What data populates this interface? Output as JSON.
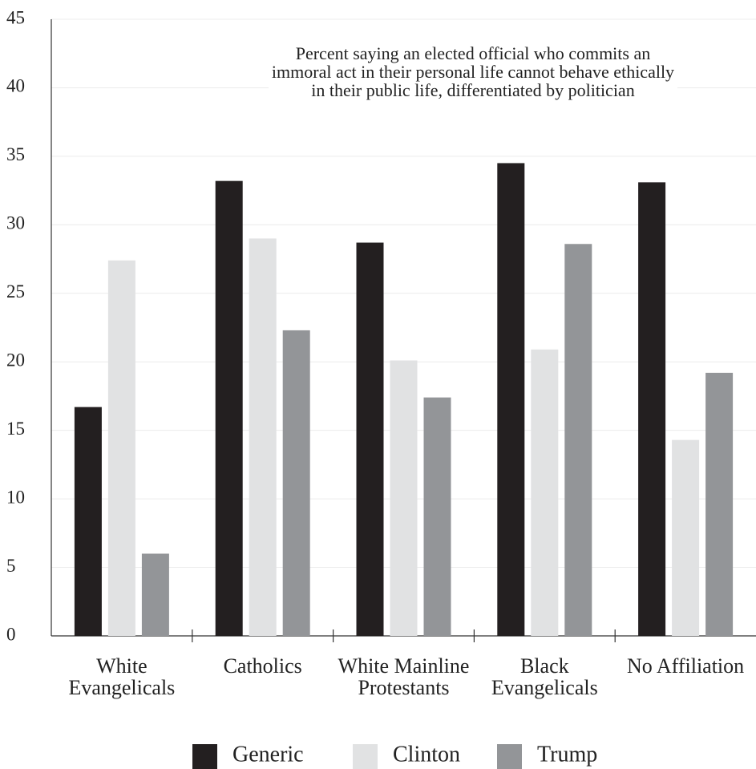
{
  "chart_data": {
    "type": "bar",
    "title": "Percent saying an elected official who commits an immoral act in their personal life cannot behave ethically in their public life, differentiated by politician",
    "categories": [
      "White Evangelicals",
      "Catholics",
      "White Mainline Protestants",
      "Black Evangelicals",
      "No Affiliation"
    ],
    "series": [
      {
        "name": "Generic",
        "color": "#231f20",
        "values": [
          16.7,
          33.2,
          28.7,
          34.5,
          33.1
        ]
      },
      {
        "name": "Clinton",
        "color": "#e1e2e3",
        "values": [
          27.4,
          29.0,
          20.1,
          20.9,
          14.3
        ]
      },
      {
        "name": "Trump",
        "color": "#939598",
        "values": [
          6.0,
          22.3,
          17.4,
          28.6,
          19.2
        ]
      }
    ],
    "ylim": [
      0,
      45
    ],
    "yticks": [
      0,
      5,
      10,
      15,
      20,
      25,
      30,
      35,
      40,
      45
    ],
    "grid": true
  }
}
